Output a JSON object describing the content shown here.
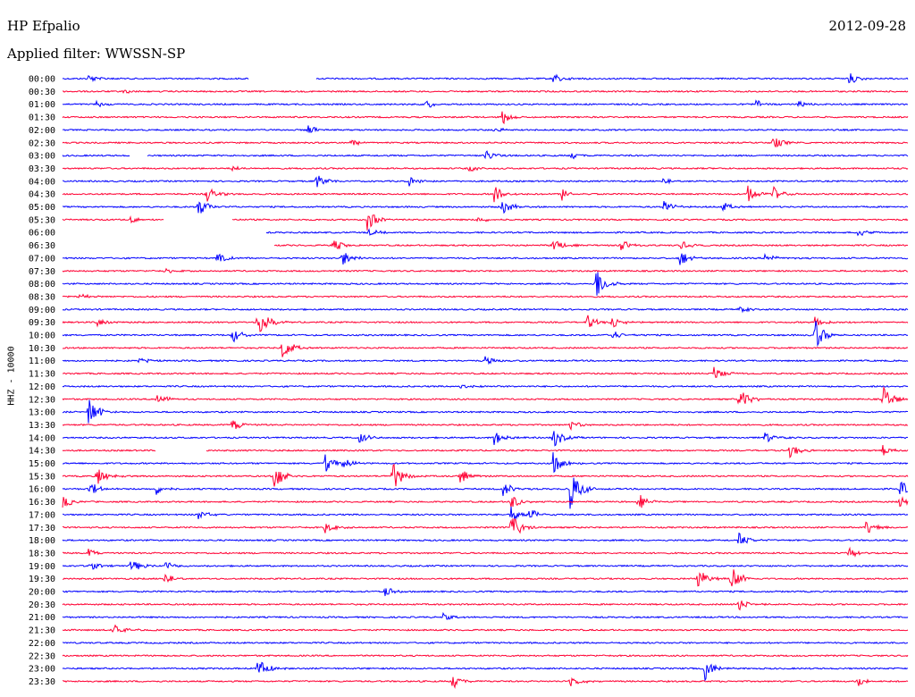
{
  "header": {
    "station": "HP Efpalio",
    "date": "2012-09-28",
    "filter": "Applied filter: WWSSN-SP"
  },
  "axis": {
    "ylabel": "HHZ - 10000"
  },
  "colors": {
    "even_hour": "#0000ff",
    "half_hour": "#ff0033",
    "background": "#ffffff"
  },
  "chart_data": {
    "type": "line",
    "title": "HP Efpalio",
    "ylabel": "HHZ - 10000",
    "grid": false,
    "rows": [
      {
        "label": "00:00",
        "events": [
          {
            "t": 0.03,
            "a": 6
          },
          {
            "t": 0.58,
            "a": 7
          },
          {
            "t": 0.93,
            "a": 7
          }
        ],
        "gaps": [
          [
            0.22,
            0.3
          ]
        ]
      },
      {
        "label": "00:30",
        "events": [
          {
            "t": 0.07,
            "a": 3
          }
        ]
      },
      {
        "label": "01:00",
        "events": [
          {
            "t": 0.04,
            "a": 4
          },
          {
            "t": 0.43,
            "a": 6
          },
          {
            "t": 0.82,
            "a": 5
          },
          {
            "t": 0.87,
            "a": 5
          }
        ]
      },
      {
        "label": "01:30",
        "events": [
          {
            "t": 0.52,
            "a": 8
          }
        ]
      },
      {
        "label": "02:00",
        "events": [
          {
            "t": 0.29,
            "a": 6
          },
          {
            "t": 0.51,
            "a": 4
          }
        ]
      },
      {
        "label": "02:30",
        "events": [
          {
            "t": 0.34,
            "a": 5
          },
          {
            "t": 0.84,
            "a": 8
          }
        ]
      },
      {
        "label": "03:00",
        "events": [
          {
            "t": 0.5,
            "a": 7
          },
          {
            "t": 0.6,
            "a": 5
          }
        ],
        "gaps": [
          [
            0.08,
            0.1
          ]
        ]
      },
      {
        "label": "03:30",
        "events": [
          {
            "t": 0.2,
            "a": 3
          },
          {
            "t": 0.48,
            "a": 4
          }
        ]
      },
      {
        "label": "04:00",
        "events": [
          {
            "t": 0.3,
            "a": 10
          },
          {
            "t": 0.41,
            "a": 6
          },
          {
            "t": 0.71,
            "a": 6
          }
        ]
      },
      {
        "label": "04:30",
        "events": [
          {
            "t": 0.17,
            "a": 10
          },
          {
            "t": 0.51,
            "a": 11
          },
          {
            "t": 0.59,
            "a": 9
          },
          {
            "t": 0.81,
            "a": 11
          },
          {
            "t": 0.84,
            "a": 9
          }
        ]
      },
      {
        "label": "05:00",
        "events": [
          {
            "t": 0.16,
            "a": 12
          },
          {
            "t": 0.52,
            "a": 10
          },
          {
            "t": 0.71,
            "a": 8
          },
          {
            "t": 0.78,
            "a": 6
          }
        ]
      },
      {
        "label": "05:30",
        "events": [
          {
            "t": 0.08,
            "a": 4
          },
          {
            "t": 0.36,
            "a": 14
          },
          {
            "t": 0.49,
            "a": 4
          }
        ],
        "gaps": [
          [
            0.12,
            0.2
          ]
        ]
      },
      {
        "label": "06:00",
        "events": [
          {
            "t": 0.08,
            "a": 12
          },
          {
            "t": 0.36,
            "a": 5
          },
          {
            "t": 0.94,
            "a": 5
          }
        ],
        "gaps": [
          [
            0.0,
            0.24
          ]
        ]
      },
      {
        "label": "06:30",
        "events": [
          {
            "t": 0.32,
            "a": 8
          },
          {
            "t": 0.58,
            "a": 10
          },
          {
            "t": 0.66,
            "a": 7
          },
          {
            "t": 0.73,
            "a": 6
          }
        ],
        "gaps": [
          [
            0.0,
            0.25
          ]
        ]
      },
      {
        "label": "07:00",
        "events": [
          {
            "t": 0.18,
            "a": 9
          },
          {
            "t": 0.33,
            "a": 10
          },
          {
            "t": 0.73,
            "a": 10
          },
          {
            "t": 0.83,
            "a": 7
          }
        ]
      },
      {
        "label": "07:30",
        "events": [
          {
            "t": 0.12,
            "a": 3
          }
        ]
      },
      {
        "label": "08:00",
        "events": [
          {
            "t": 0.63,
            "a": 22
          }
        ]
      },
      {
        "label": "08:30",
        "events": [
          {
            "t": 0.02,
            "a": 3
          }
        ]
      },
      {
        "label": "09:00",
        "events": [
          {
            "t": 0.8,
            "a": 4
          }
        ]
      },
      {
        "label": "09:30",
        "events": [
          {
            "t": 0.23,
            "a": 28
          },
          {
            "t": 0.04,
            "a": 5
          },
          {
            "t": 0.62,
            "a": 9
          },
          {
            "t": 0.65,
            "a": 7
          },
          {
            "t": 0.89,
            "a": 8
          }
        ]
      },
      {
        "label": "10:00",
        "events": [
          {
            "t": 0.2,
            "a": 10
          },
          {
            "t": 0.65,
            "a": 6
          },
          {
            "t": 0.89,
            "a": 18
          }
        ]
      },
      {
        "label": "10:30",
        "events": [
          {
            "t": 0.26,
            "a": 14
          }
        ]
      },
      {
        "label": "11:00",
        "events": [
          {
            "t": 0.09,
            "a": 4
          },
          {
            "t": 0.5,
            "a": 6
          }
        ]
      },
      {
        "label": "11:30",
        "events": [
          {
            "t": 0.77,
            "a": 10
          }
        ]
      },
      {
        "label": "12:00",
        "events": [
          {
            "t": 0.47,
            "a": 5
          }
        ]
      },
      {
        "label": "12:30",
        "events": [
          {
            "t": 0.11,
            "a": 8
          },
          {
            "t": 0.8,
            "a": 16
          },
          {
            "t": 0.97,
            "a": 18
          }
        ]
      },
      {
        "label": "13:00",
        "events": [
          {
            "t": 0.03,
            "a": 20
          }
        ]
      },
      {
        "label": "13:30",
        "events": [
          {
            "t": 0.2,
            "a": 9
          },
          {
            "t": 0.6,
            "a": 6
          }
        ]
      },
      {
        "label": "14:00",
        "events": [
          {
            "t": 0.35,
            "a": 8
          },
          {
            "t": 0.51,
            "a": 9
          },
          {
            "t": 0.58,
            "a": 12
          },
          {
            "t": 0.83,
            "a": 7
          }
        ]
      },
      {
        "label": "14:30",
        "events": [
          {
            "t": 0.86,
            "a": 9
          },
          {
            "t": 0.97,
            "a": 7
          }
        ],
        "gaps": [
          [
            0.11,
            0.17
          ]
        ]
      },
      {
        "label": "15:00",
        "events": [
          {
            "t": 0.31,
            "a": 12
          },
          {
            "t": 0.33,
            "a": 10
          },
          {
            "t": 0.58,
            "a": 14
          }
        ]
      },
      {
        "label": "15:30",
        "events": [
          {
            "t": 0.04,
            "a": 14
          },
          {
            "t": 0.25,
            "a": 20
          },
          {
            "t": 0.39,
            "a": 18
          },
          {
            "t": 0.47,
            "a": 10
          }
        ]
      },
      {
        "label": "16:00",
        "events": [
          {
            "t": 0.03,
            "a": 10
          },
          {
            "t": 0.11,
            "a": 7
          },
          {
            "t": 0.52,
            "a": 10
          },
          {
            "t": 0.6,
            "a": 26
          },
          {
            "t": 0.99,
            "a": 10
          }
        ]
      },
      {
        "label": "16:30",
        "events": [
          {
            "t": 0.0,
            "a": 8
          },
          {
            "t": 0.53,
            "a": 10
          },
          {
            "t": 0.68,
            "a": 12
          },
          {
            "t": 0.99,
            "a": 8
          }
        ]
      },
      {
        "label": "17:00",
        "events": [
          {
            "t": 0.16,
            "a": 6
          },
          {
            "t": 0.53,
            "a": 12
          },
          {
            "t": 0.55,
            "a": 10
          }
        ]
      },
      {
        "label": "17:30",
        "events": [
          {
            "t": 0.31,
            "a": 8
          },
          {
            "t": 0.53,
            "a": 18
          },
          {
            "t": 0.95,
            "a": 10
          }
        ]
      },
      {
        "label": "18:00",
        "events": [
          {
            "t": 0.8,
            "a": 9
          }
        ]
      },
      {
        "label": "18:30",
        "events": [
          {
            "t": 0.03,
            "a": 5
          },
          {
            "t": 0.93,
            "a": 7
          }
        ]
      },
      {
        "label": "19:00",
        "events": [
          {
            "t": 0.03,
            "a": 7
          },
          {
            "t": 0.08,
            "a": 9
          },
          {
            "t": 0.12,
            "a": 6
          }
        ]
      },
      {
        "label": "19:30",
        "events": [
          {
            "t": 0.12,
            "a": 10
          },
          {
            "t": 0.75,
            "a": 14
          },
          {
            "t": 0.79,
            "a": 18
          }
        ]
      },
      {
        "label": "20:00",
        "events": [
          {
            "t": 0.38,
            "a": 7
          }
        ]
      },
      {
        "label": "20:30",
        "events": [
          {
            "t": 0.8,
            "a": 8
          }
        ]
      },
      {
        "label": "21:00",
        "events": [
          {
            "t": 0.45,
            "a": 4
          }
        ]
      },
      {
        "label": "21:30",
        "events": [
          {
            "t": 0.06,
            "a": 10
          }
        ]
      },
      {
        "label": "22:00",
        "events": []
      },
      {
        "label": "22:30",
        "events": []
      },
      {
        "label": "23:00",
        "events": [
          {
            "t": 0.23,
            "a": 14
          },
          {
            "t": 0.76,
            "a": 14
          }
        ]
      },
      {
        "label": "23:30",
        "events": [
          {
            "t": 0.46,
            "a": 10
          },
          {
            "t": 0.6,
            "a": 8
          },
          {
            "t": 0.94,
            "a": 8
          }
        ]
      }
    ]
  }
}
